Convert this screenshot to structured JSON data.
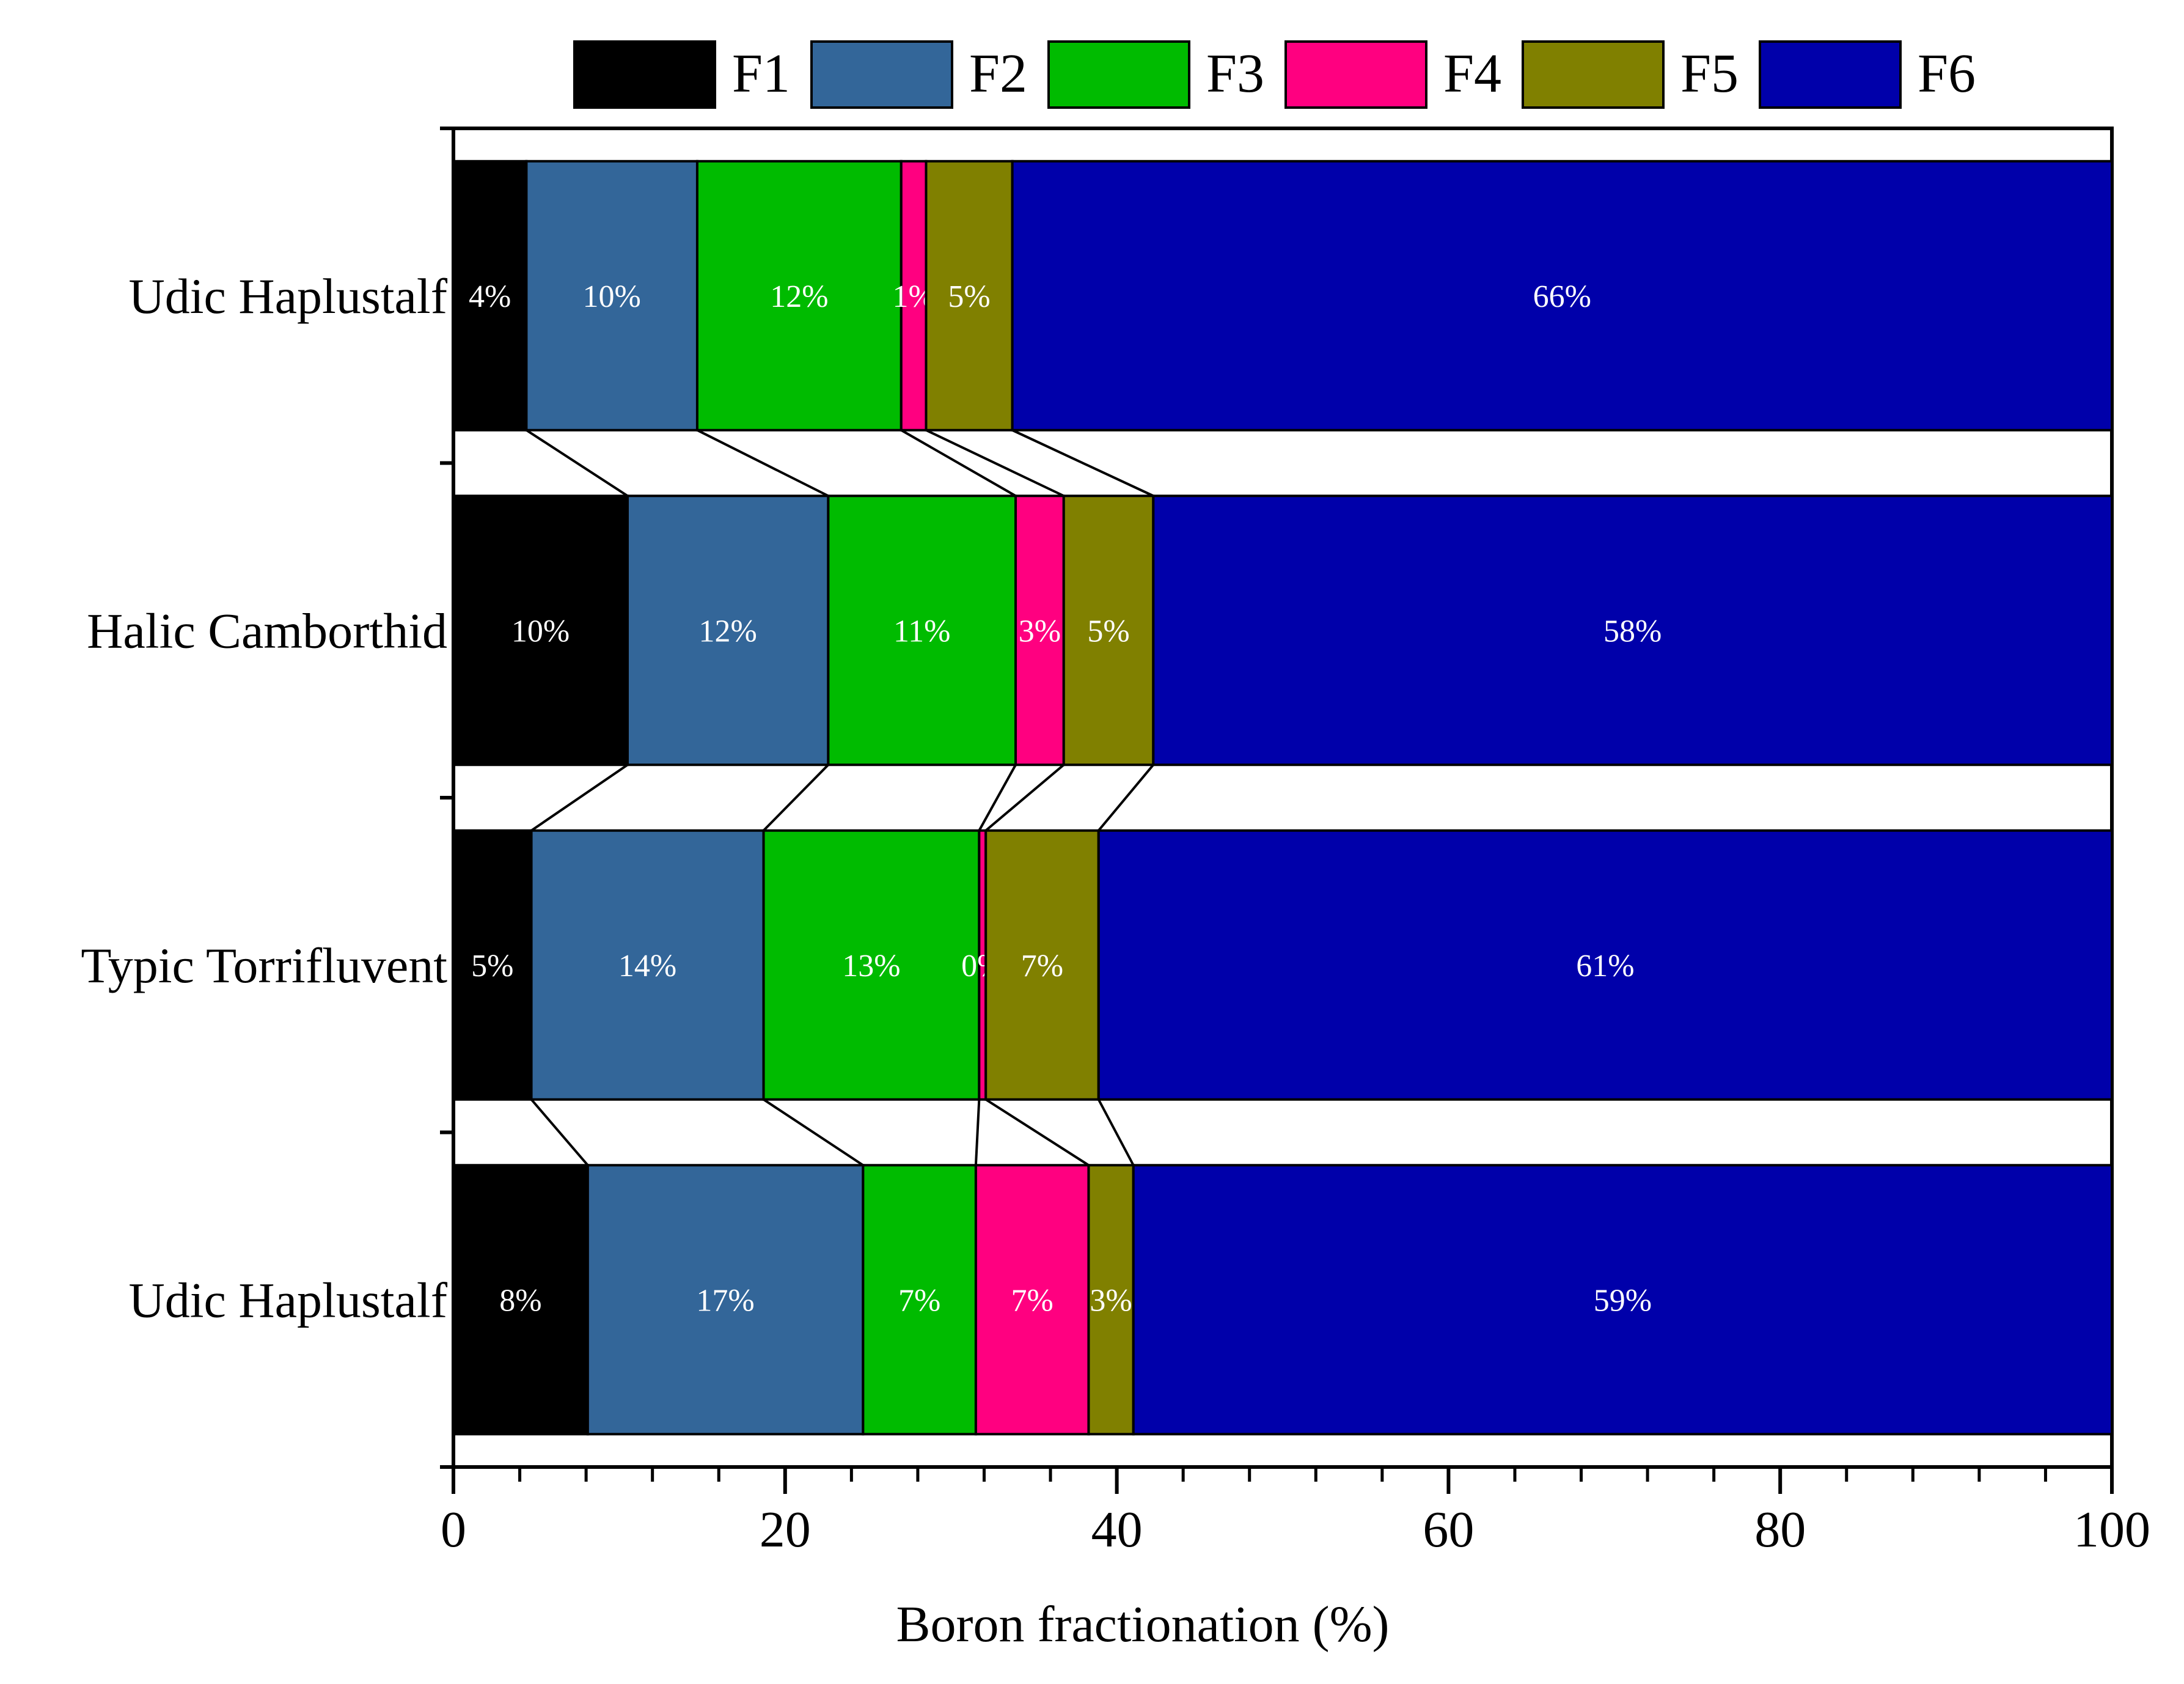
{
  "chart_data": {
    "type": "bar",
    "orientation": "horizontal",
    "stacked": true,
    "title": "",
    "xlabel": "Boron fractionation (%)",
    "ylabel": "",
    "xlim": [
      0,
      100
    ],
    "x_ticks": [
      "0",
      "20",
      "40",
      "60",
      "80",
      "100"
    ],
    "grid": false,
    "legend_position": "top",
    "categories": [
      "Udic Haplustalf",
      "Halic Camborthid",
      "Typic Torrifluvent",
      "Udic Haplustalf"
    ],
    "series": [
      {
        "name": "F1",
        "color": "#000000",
        "values": [
          4.4,
          10.5,
          4.7,
          8.1
        ],
        "labels": [
          "4%",
          "10%",
          "5%",
          "8%"
        ]
      },
      {
        "name": "F2",
        "color": "#336699",
        "values": [
          10.3,
          12.1,
          14.0,
          16.6
        ],
        "labels": [
          "10%",
          "12%",
          "14%",
          "17%"
        ]
      },
      {
        "name": "F3",
        "color": "#00BB00",
        "values": [
          12.3,
          11.3,
          13.0,
          6.8
        ],
        "labels": [
          "12%",
          "11%",
          "13%",
          "7%"
        ]
      },
      {
        "name": "F4",
        "color": "#FF0080",
        "values": [
          1.5,
          2.9,
          0.4,
          6.8
        ],
        "labels": [
          "1%",
          "3%",
          "0%",
          "7%"
        ]
      },
      {
        "name": "F5",
        "color": "#808000",
        "values": [
          5.2,
          5.4,
          6.8,
          2.7
        ],
        "labels": [
          "5%",
          "5%",
          "7%",
          "3%"
        ]
      },
      {
        "name": "F6",
        "color": "#0000AA",
        "values": [
          66.3,
          57.8,
          61.1,
          59.0
        ],
        "labels": [
          "66%",
          "58%",
          "61%",
          "59%"
        ]
      }
    ],
    "connector_lines": true
  }
}
